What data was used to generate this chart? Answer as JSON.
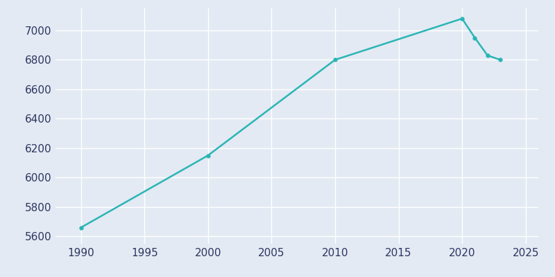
{
  "years": [
    1990,
    2000,
    2010,
    2020,
    2021,
    2022,
    2023
  ],
  "population": [
    5660,
    6150,
    6800,
    7080,
    6950,
    6830,
    6800
  ],
  "line_color": "#2AB5B5",
  "marker_color": "#2AB5B5",
  "background_color": "#E3EAF3",
  "grid_color": "#ffffff",
  "xlim": [
    1988,
    2026
  ],
  "ylim": [
    5550,
    7150
  ],
  "xticks": [
    1990,
    1995,
    2000,
    2005,
    2010,
    2015,
    2020,
    2025
  ],
  "yticks": [
    5600,
    5800,
    6000,
    6200,
    6400,
    6600,
    6800,
    7000
  ],
  "tick_color": "#2d3561",
  "figsize": [
    8.0,
    4.0
  ],
  "dpi": 100
}
